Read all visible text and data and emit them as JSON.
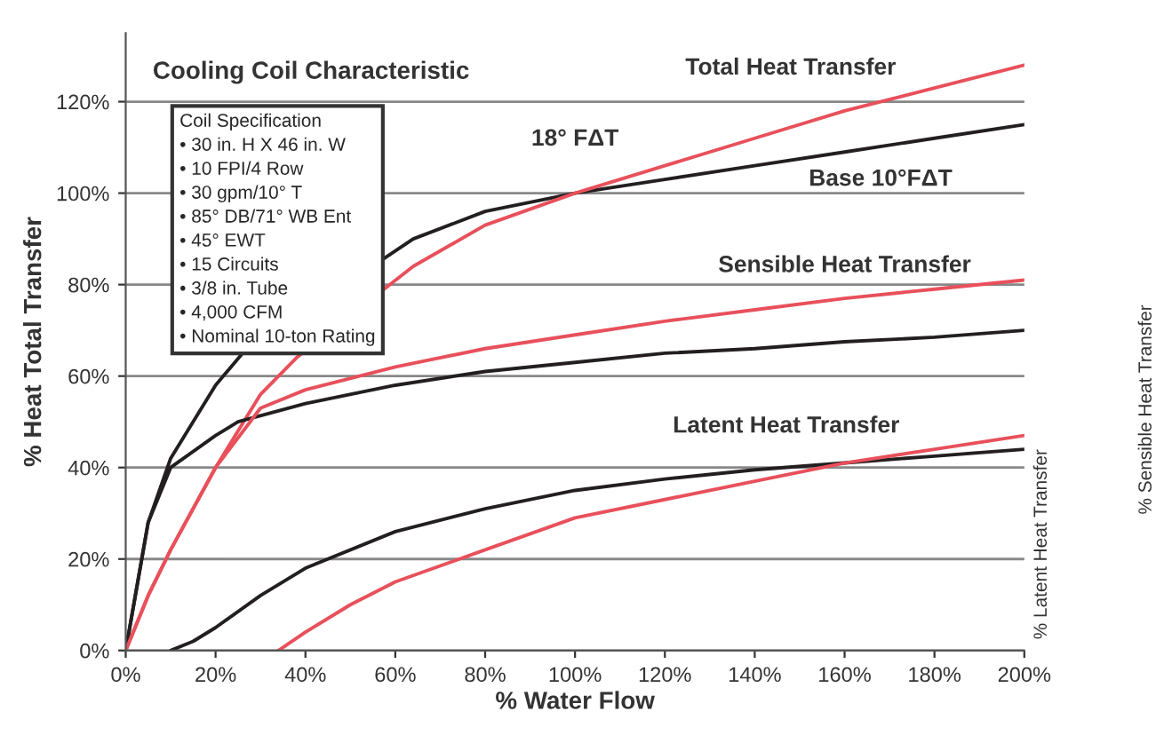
{
  "chart_data": {
    "type": "line",
    "title": "Cooling Coil Characteristic",
    "xlabel": "% Water Flow",
    "ylabel": "% Heat Total Transfer",
    "xlim": [
      0,
      200
    ],
    "ylim": [
      0,
      135
    ],
    "xticks": [
      {
        "value": 0,
        "label": "0%"
      },
      {
        "value": 20,
        "label": "20%"
      },
      {
        "value": 40,
        "label": "40%"
      },
      {
        "value": 60,
        "label": "60%"
      },
      {
        "value": 80,
        "label": "80%"
      },
      {
        "value": 100,
        "label": "100%"
      },
      {
        "value": 120,
        "label": "120%"
      },
      {
        "value": 140,
        "label": "140%"
      },
      {
        "value": 160,
        "label": "160%"
      },
      {
        "value": 180,
        "label": "180%"
      },
      {
        "value": 200,
        "label": "200%"
      }
    ],
    "yticks": [
      {
        "value": 0,
        "label": "0%"
      },
      {
        "value": 20,
        "label": "20%"
      },
      {
        "value": 40,
        "label": "40%"
      },
      {
        "value": 60,
        "label": "60%"
      },
      {
        "value": 80,
        "label": "80%"
      },
      {
        "value": 100,
        "label": "100%"
      },
      {
        "value": 120,
        "label": "120%"
      }
    ],
    "grid": "y",
    "marker": "none",
    "line_style": "solid",
    "series": [
      {
        "color": "#231f20",
        "x": [
          0,
          5,
          10,
          20,
          26,
          64,
          80,
          100,
          120,
          140,
          160,
          180,
          200
        ],
        "values": [
          0,
          28,
          42,
          58,
          65,
          90,
          96,
          100,
          103,
          106,
          109,
          112,
          115
        ]
      },
      {
        "color": "#e8505b",
        "x": [
          0,
          5,
          10,
          20,
          30,
          38,
          64,
          80,
          100,
          120,
          140,
          160,
          180,
          200
        ],
        "values": [
          0,
          12,
          22,
          40,
          56,
          64,
          84,
          93,
          100,
          106,
          112,
          118,
          123,
          128
        ]
      },
      {
        "color": "#231f20",
        "x": [
          0,
          5,
          10,
          20,
          25,
          40,
          60,
          80,
          100,
          120,
          140,
          160,
          180,
          200
        ],
        "values": [
          0,
          28,
          40,
          47,
          50,
          54,
          58,
          61,
          63,
          65,
          66,
          67.5,
          68.5,
          70
        ]
      },
      {
        "color": "#e8505b",
        "x": [
          0,
          5,
          10,
          20,
          30,
          40,
          60,
          80,
          100,
          120,
          140,
          160,
          180,
          200
        ],
        "values": [
          0,
          12,
          22,
          40,
          53,
          57,
          62,
          66,
          69,
          72,
          74.5,
          77,
          79,
          81
        ]
      },
      {
        "color": "#231f20",
        "x": [
          10,
          15,
          20,
          30,
          40,
          60,
          80,
          100,
          120,
          140,
          160,
          180,
          200
        ],
        "values": [
          0,
          2,
          5,
          12,
          18,
          26,
          31,
          35,
          37.5,
          39.5,
          41,
          42.5,
          44
        ]
      },
      {
        "color": "#e8505b",
        "x": [
          34,
          40,
          50,
          60,
          80,
          100,
          120,
          140,
          160,
          180,
          200
        ],
        "values": [
          0,
          4,
          10,
          15,
          22,
          29,
          33,
          37,
          41,
          44,
          47
        ]
      }
    ],
    "annotations": [
      "Coil Specification\n• 30 in. H X 46 in. W\n• 10 FPI/4 Row\n• 30 gpm/10° T\n• 85° DB/71° WB Ent\n• 45° EWT\n• 15 Circuits\n• 3/8 in. Tube\n• 4,000 CFM\n• Nominal 10-ton Rating",
      "% Latent Heat Transfer",
      "% Sensible Heat Transfer",
      "Total Heat Transfer",
      "18° FΔT",
      "Base 10°FΔT",
      "Sensible Heat Transfer",
      "Latent Heat Transfer"
    ]
  }
}
